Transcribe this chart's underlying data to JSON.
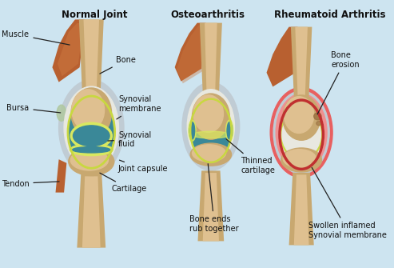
{
  "background_color": "#cde4f0",
  "title_normal": "Normal Joint",
  "title_oa": "Osteoarthritis",
  "title_ra": "Rheumatoid Arthritis",
  "bone_color": "#c8a870",
  "bone_light": "#dfc090",
  "bone_dark": "#b89060",
  "muscle_color": "#b86030",
  "muscle_light": "#cc7840",
  "capsule_color": "#c0ccd4",
  "capsule_dark": "#8090a0",
  "synovial_fluid_color": "#3a8898",
  "cartilage_color": "#c8d840",
  "cartilage_light": "#d8e860",
  "ra_inflamed_color": "#e86060",
  "ra_inflamed_light": "#f09090",
  "white_layer": "#e8e8e0",
  "text_color": "#111111",
  "title_fontsize": 8.5,
  "label_fontsize": 7.0
}
